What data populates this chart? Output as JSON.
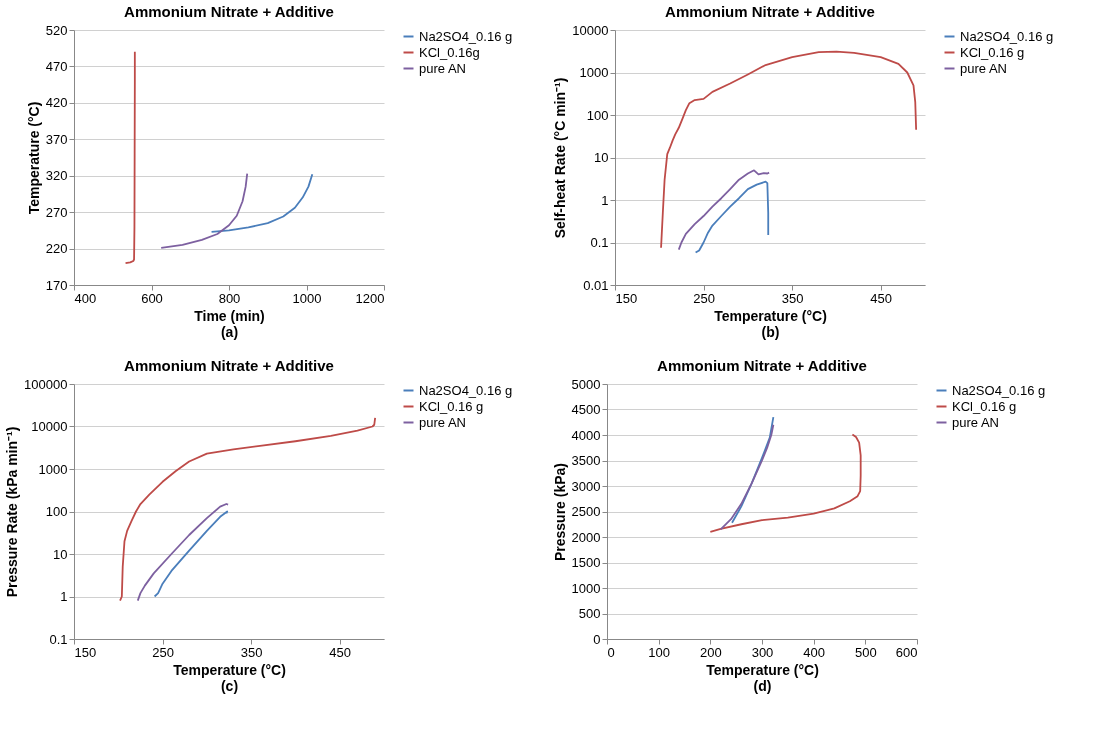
{
  "chart_data": [
    {
      "type": "line",
      "title": "Ammonium Nitrate + Additive",
      "xlabel": "Time (min)",
      "ylabel": "Temperature (°C)",
      "annotations": [
        "(a)"
      ],
      "xlim": [
        400,
        1200
      ],
      "xticks": [
        400,
        600,
        800,
        1000,
        1200
      ],
      "ylim": [
        170,
        520
      ],
      "yticks": [
        170,
        220,
        270,
        320,
        370,
        420,
        470,
        520
      ],
      "grid": "y",
      "legend": "right",
      "series": [
        {
          "name": "Na2SO4_0.16 g",
          "color": "#4a7ebb",
          "x": [
            755,
            800,
            850,
            900,
            940,
            970,
            990,
            1005,
            1015
          ],
          "values": [
            243,
            245,
            249,
            255,
            264,
            276,
            290,
            305,
            322
          ]
        },
        {
          "name": "KCl_0.16g",
          "color": "#be4b48",
          "x": [
            533,
            545,
            553,
            555,
            556,
            556.5,
            557,
            557
          ],
          "values": [
            200,
            201,
            203,
            205,
            250,
            350,
            450,
            490
          ]
        },
        {
          "name": "pure AN",
          "color": "#7d60a0",
          "x": [
            625,
            680,
            730,
            770,
            800,
            820,
            835,
            843,
            847
          ],
          "values": [
            221,
            225,
            232,
            240,
            252,
            265,
            285,
            305,
            323
          ]
        }
      ]
    },
    {
      "type": "line",
      "title": "Ammonium Nitrate + Additive",
      "xlabel": "Temperature (°C)",
      "ylabel": "Self-heat Rate (°C min⁻¹)",
      "annotations": [
        "(b)"
      ],
      "log": "y",
      "xlim": [
        150,
        500
      ],
      "xticks": [
        150,
        250,
        350,
        450
      ],
      "ylim": [
        0.01,
        10000
      ],
      "yticks": [
        0.01,
        0.1,
        1,
        10,
        100,
        1000,
        10000
      ],
      "grid": "y",
      "legend": "right",
      "series": [
        {
          "name": "Na2SO4_0.16 g",
          "color": "#4a7ebb",
          "x": [
            241,
            245,
            250,
            255,
            260,
            270,
            280,
            290,
            300,
            310,
            320,
            322,
            323,
            323
          ],
          "values": [
            0.058,
            0.065,
            0.1,
            0.17,
            0.25,
            0.42,
            0.7,
            1.1,
            1.8,
            2.3,
            2.7,
            2.5,
            0.5,
            0.15
          ]
        },
        {
          "name": "KCl_0.16 g",
          "color": "#be4b48",
          "x": [
            202,
            204,
            206,
            209,
            212,
            215,
            218,
            222,
            226,
            230,
            234,
            240,
            250,
            260,
            280,
            300,
            320,
            350,
            380,
            400,
            420,
            450,
            470,
            480,
            487,
            489,
            490
          ],
          "values": [
            0.075,
            0.5,
            3,
            12,
            17,
            25,
            35,
            50,
            80,
            130,
            190,
            225,
            240,
            350,
            550,
            900,
            1500,
            2300,
            3000,
            3100,
            2900,
            2300,
            1600,
            1000,
            500,
            200,
            45
          ]
        },
        {
          "name": "pure AN",
          "color": "#7d60a0",
          "x": [
            222,
            225,
            230,
            240,
            250,
            260,
            270,
            280,
            290,
            300,
            307,
            312,
            318,
            322,
            324
          ],
          "values": [
            0.068,
            0.1,
            0.16,
            0.27,
            0.42,
            0.7,
            1.1,
            1.8,
            3,
            4.2,
            5,
            4,
            4.3,
            4.2,
            4.4
          ]
        }
      ]
    },
    {
      "type": "line",
      "title": "Ammonium Nitrate + Additive",
      "xlabel": "Temperature (°C)",
      "ylabel": "Pressure Rate (kPa min⁻¹)",
      "annotations": [
        "(c)"
      ],
      "log": "y",
      "xlim": [
        150,
        500
      ],
      "xticks": [
        150,
        250,
        350,
        450
      ],
      "ylim": [
        0.1,
        100000
      ],
      "yticks": [
        0.1,
        1,
        10,
        100,
        1000,
        10000,
        100000
      ],
      "grid": "y",
      "legend": "right",
      "series": [
        {
          "name": "Na2SO4_0.16 g",
          "color": "#4a7ebb",
          "x": [
            241,
            245,
            250,
            260,
            280,
            300,
            315,
            323,
            322
          ],
          "values": [
            1,
            1.2,
            2,
            4,
            12,
            35,
            75,
            100,
            90
          ]
        },
        {
          "name": "KCl_0.16 g",
          "color": "#be4b48",
          "x": [
            202,
            204,
            205,
            207,
            210,
            215,
            220,
            225,
            235,
            250,
            265,
            280,
            300,
            330,
            360,
            400,
            440,
            470,
            487,
            489,
            490
          ],
          "values": [
            0.8,
            1,
            5,
            20,
            35,
            60,
            100,
            150,
            250,
            500,
            900,
            1500,
            2300,
            2900,
            3500,
            4500,
            6000,
            8000,
            10000,
            11000,
            16000
          ]
        },
        {
          "name": "pure AN",
          "color": "#7d60a0",
          "x": [
            222,
            225,
            230,
            240,
            260,
            280,
            300,
            315,
            322,
            324
          ],
          "values": [
            0.8,
            1.2,
            1.8,
            3.5,
            10,
            28,
            70,
            130,
            150,
            145
          ]
        }
      ]
    },
    {
      "type": "line",
      "title": "Ammonium Nitrate + Additive",
      "xlabel": "Temperature (°C)",
      "ylabel": "Pressure (kPa)",
      "annotations": [
        "(d)"
      ],
      "xlim": [
        0,
        600
      ],
      "xticks": [
        0,
        100,
        200,
        300,
        400,
        500,
        600
      ],
      "ylim": [
        0,
        5000
      ],
      "yticks": [
        0,
        500,
        1000,
        1500,
        2000,
        2500,
        3000,
        3500,
        4000,
        4500,
        5000
      ],
      "grid": "y",
      "legend": "right",
      "series": [
        {
          "name": "Na2SO4_0.16 g",
          "color": "#4a7ebb",
          "x": [
            242,
            260,
            280,
            300,
            315,
            322
          ],
          "values": [
            2280,
            2600,
            3050,
            3550,
            3950,
            4350
          ]
        },
        {
          "name": "KCl_0.16 g",
          "color": "#be4b48",
          "x": [
            200,
            220,
            260,
            300,
            350,
            400,
            440,
            470,
            485,
            490,
            491,
            491,
            488,
            482,
            475
          ],
          "values": [
            2100,
            2160,
            2250,
            2330,
            2380,
            2460,
            2560,
            2700,
            2800,
            2900,
            3200,
            3600,
            3850,
            3960,
            4010
          ]
        },
        {
          "name": "pure AN",
          "color": "#7d60a0",
          "x": [
            220,
            240,
            260,
            280,
            300,
            310,
            318,
            322
          ],
          "values": [
            2150,
            2350,
            2650,
            3050,
            3500,
            3750,
            4000,
            4200
          ]
        }
      ]
    }
  ]
}
